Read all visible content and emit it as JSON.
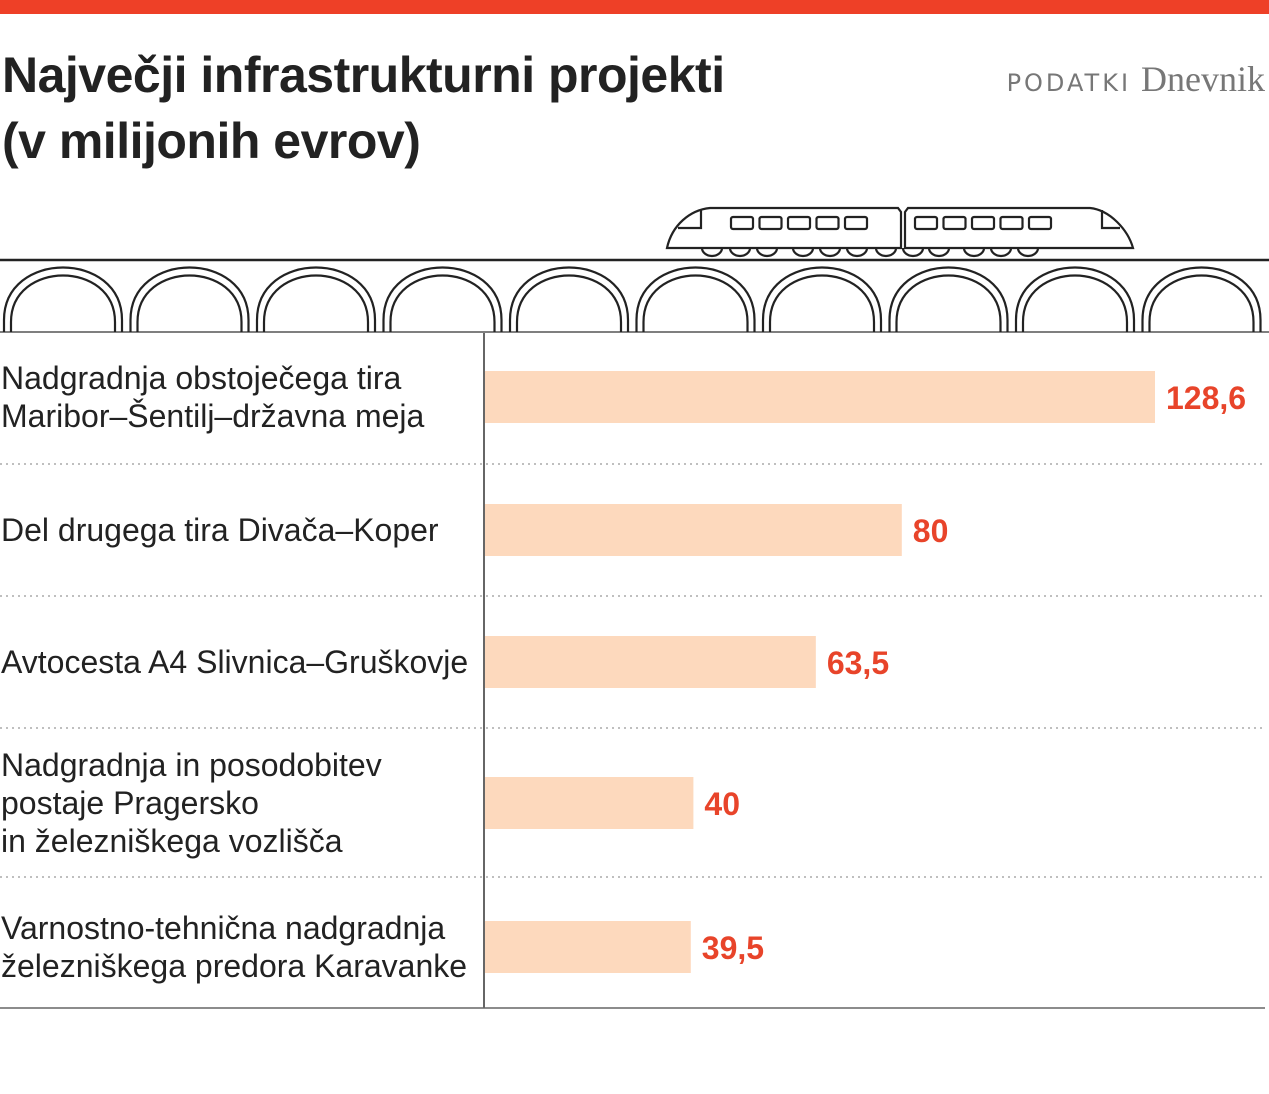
{
  "header": {
    "title_line1": "Največji infrastrukturni projekti",
    "title_line2": "(v milijonih evrov)",
    "source_label": "PODATKI",
    "source_brand": "Dnevnik"
  },
  "colors": {
    "accent": "#ee4027",
    "bar": "#fdd9bd",
    "value": "#e8442a"
  },
  "chart_data": {
    "type": "bar",
    "orientation": "horizontal",
    "title": "Največji infrastrukturni projekti (v milijonih evrov)",
    "categories": [
      [
        "Nadgradnja obstoječega tira",
        "Maribor–Šentilj–državna meja"
      ],
      [
        "Del drugega tira Divača–Koper"
      ],
      [
        "Avtocesta A4 Slivnica–Gruškovje"
      ],
      [
        "Nadgradnja in posodobitev",
        "postaje Pragersko",
        "in železniškega vozlišča"
      ],
      [
        "Varnostno-tehnična nadgradnja",
        "železniškega predora Karavanke"
      ]
    ],
    "values": [
      128.6,
      80,
      63.5,
      40,
      39.5
    ],
    "value_labels": [
      "128,6",
      "80",
      "63,5",
      "40",
      "39,5"
    ],
    "xlim": [
      0,
      140
    ],
    "grid": false
  }
}
